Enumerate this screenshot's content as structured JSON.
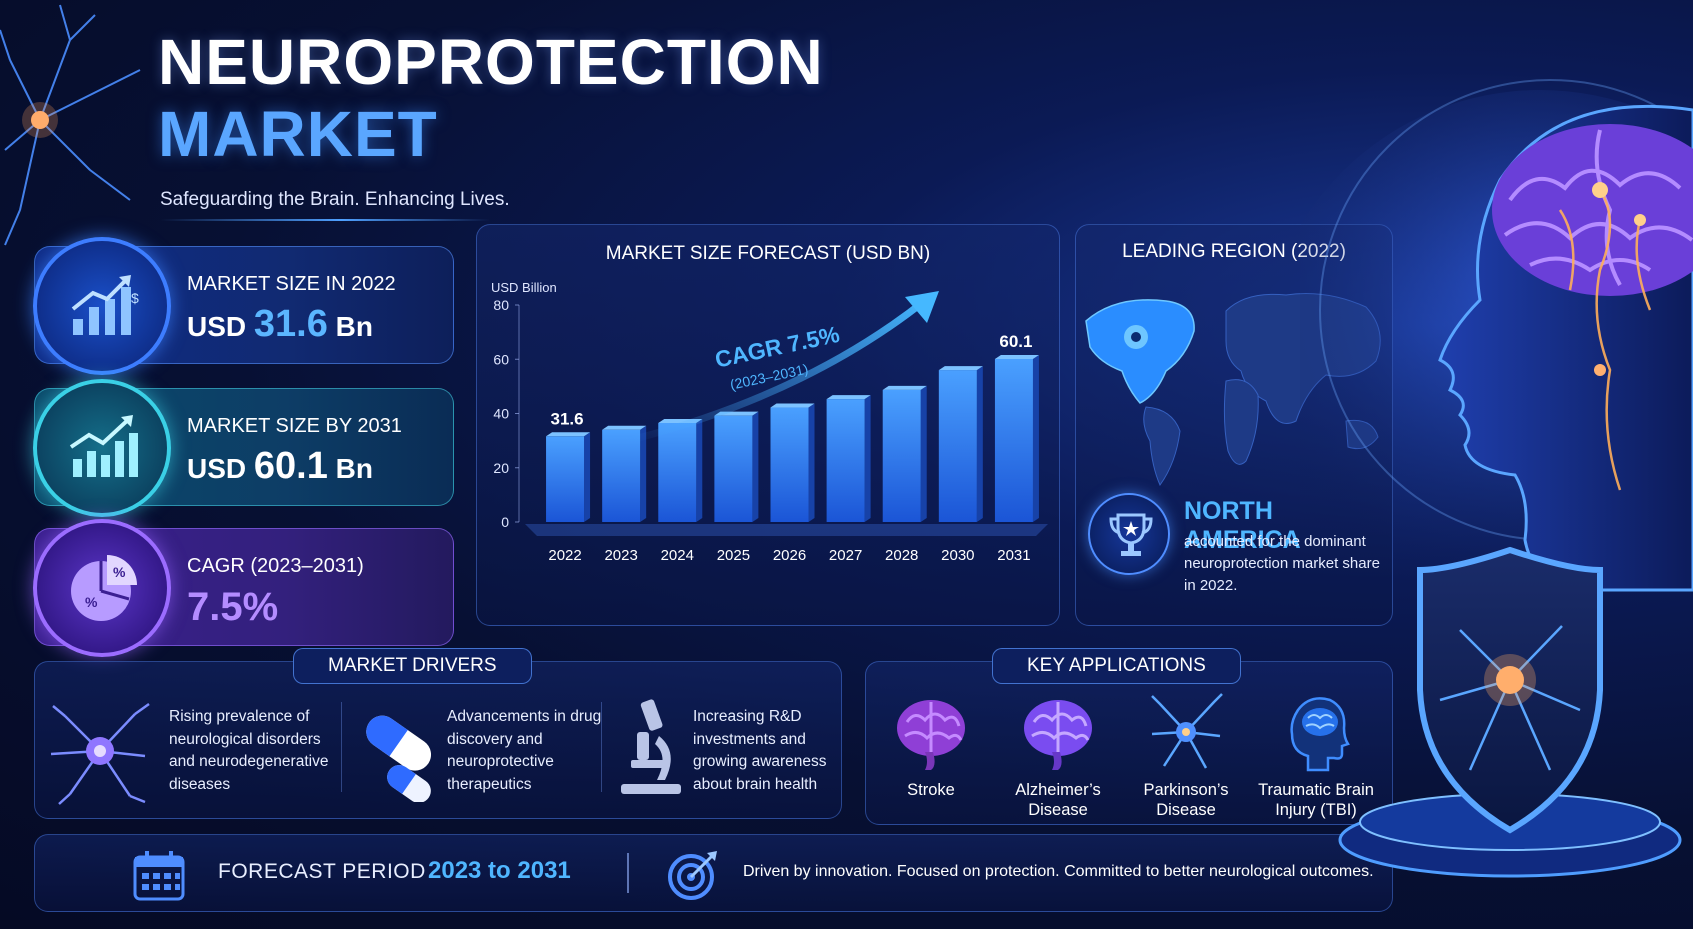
{
  "title": {
    "line1": "NEUROPROTECTION",
    "line2": "MARKET"
  },
  "tagline": "Safeguarding the Brain. Enhancing Lives.",
  "kpis": [
    {
      "label": "MARKET SIZE IN 2022",
      "prefix": "USD",
      "value": "31.6",
      "suffix": "Bn",
      "icon": "bar-chart-dollar-icon"
    },
    {
      "label": "MARKET SIZE BY 2031",
      "prefix": "USD",
      "value": "60.1",
      "suffix": "Bn",
      "icon": "growth-chart-icon"
    },
    {
      "label": "CAGR (2023–2031)",
      "prefix": "",
      "value": "7.5%",
      "suffix": "",
      "icon": "pie-percent-icon"
    }
  ],
  "chart_data": {
    "type": "bar",
    "title": "MARKET SIZE FORECAST (USD BN)",
    "ylabel": "USD Billion",
    "xlabel": "",
    "categories": [
      "2022",
      "2023",
      "2024",
      "2025",
      "2026",
      "2027",
      "2028",
      "2030",
      "2031"
    ],
    "values": [
      31.6,
      34.0,
      36.5,
      39.2,
      42.2,
      45.3,
      48.7,
      56.0,
      60.1
    ],
    "data_labels": {
      "2022": "31.6",
      "2031": "60.1"
    },
    "ylim": [
      0,
      80
    ],
    "yticks": [
      0,
      20,
      40,
      60,
      80
    ],
    "annotation": {
      "text": "CAGR 7.5%",
      "subtext": "(2023–2031)"
    },
    "grid": false,
    "bar_color": "#2f7dff"
  },
  "region": {
    "title": "LEADING REGION (2022)",
    "name": "NORTH AMERICA",
    "description": "accounted for the dominant neuroprotection market share in 2022."
  },
  "drivers": {
    "title": "MARKET DRIVERS",
    "items": [
      {
        "text": "Rising prevalence of neurological disorders and neurodegenerative diseases",
        "icon": "neuron-icon"
      },
      {
        "text": "Advancements in drug discovery and neuroprotective therapeutics",
        "icon": "capsule-icon"
      },
      {
        "text": "Increasing R&D investments and growing awareness about brain health",
        "icon": "microscope-icon"
      }
    ]
  },
  "applications": {
    "title": "KEY APPLICATIONS",
    "items": [
      {
        "label": "Stroke",
        "icon": "brain-icon"
      },
      {
        "label": "Alzheimer’s Disease",
        "icon": "brain-icon"
      },
      {
        "label": "Parkinson’s Disease",
        "icon": "neuron-icon"
      },
      {
        "label": "Traumatic Brain Injury (TBI)",
        "icon": "head-brain-icon"
      }
    ]
  },
  "footer": {
    "period_label": "FORECAST PERIOD",
    "period_value": "2023 to 2031",
    "motto": "Driven by innovation. Focused on protection. Committed to better neurological outcomes."
  },
  "colors": {
    "accent": "#4fb6ff",
    "purple": "#b48cff",
    "background": "#071033"
  }
}
